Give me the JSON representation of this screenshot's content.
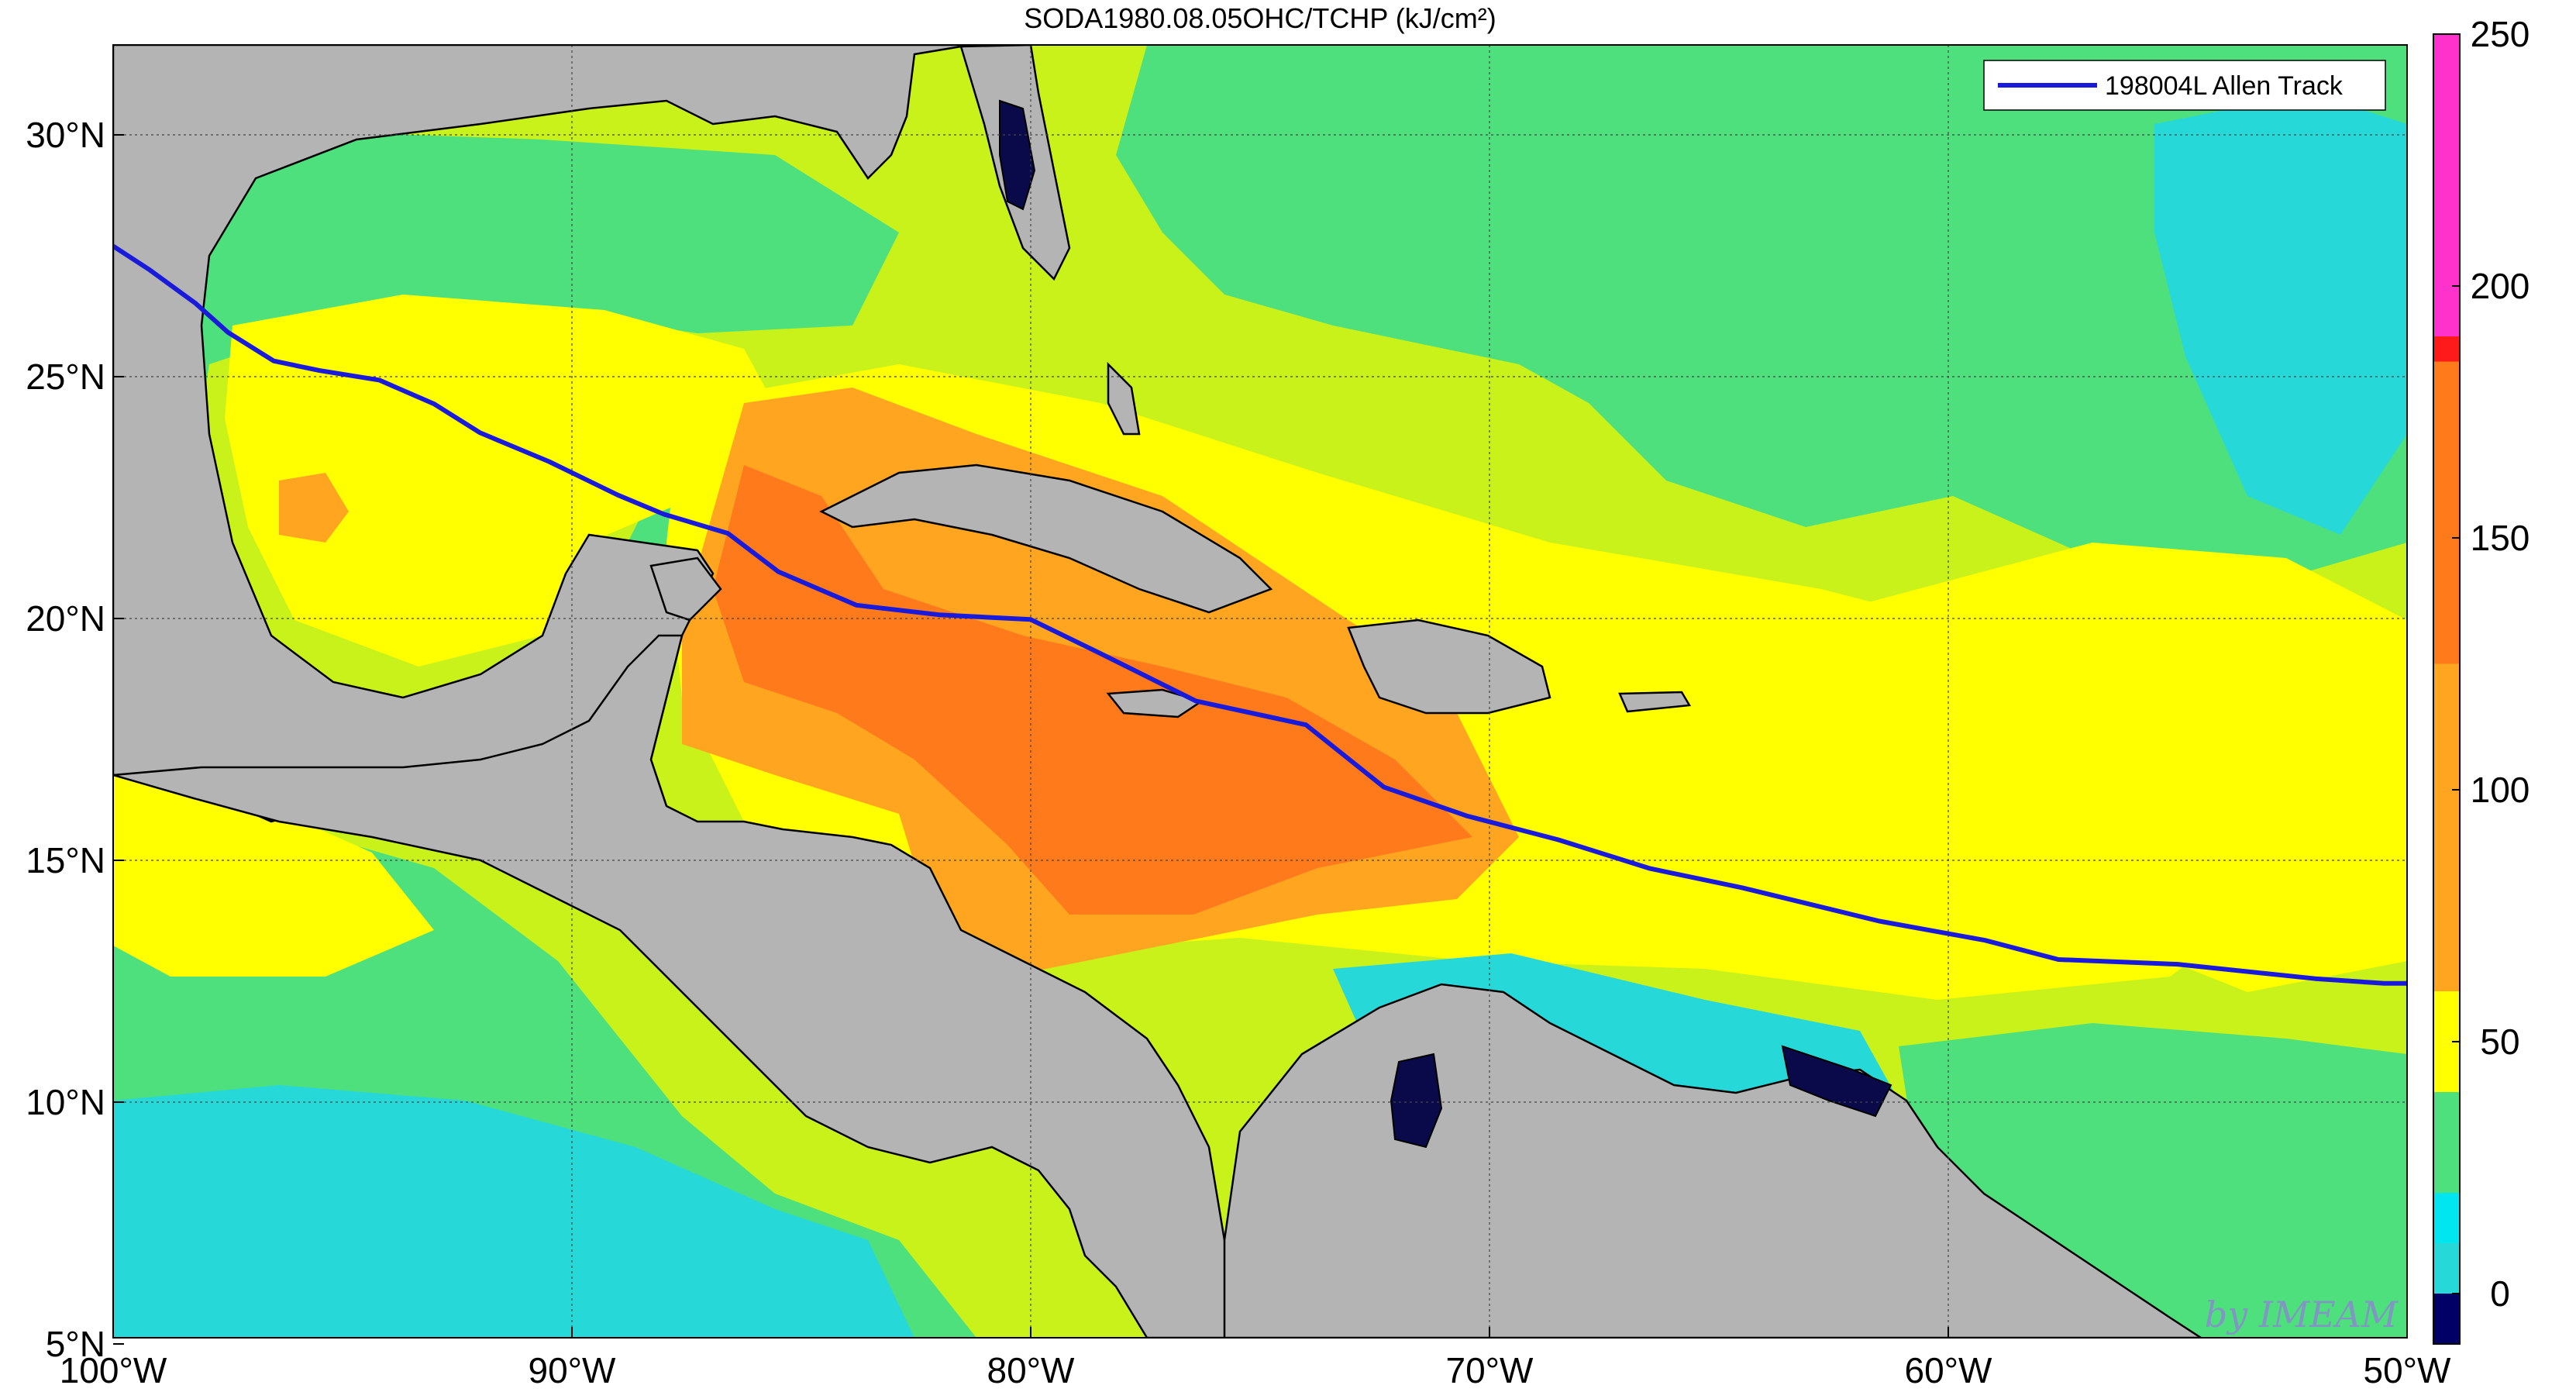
{
  "title": "SODA1980.08.05OHC/TCHP (kJ/cm²)",
  "credit": "by IMEAM",
  "legend": {
    "label": "198004L Allen Track",
    "color": "#1a1adb",
    "placement": "top-right"
  },
  "x_ticks": [
    "100°W",
    "90°W",
    "80°W",
    "70°W",
    "60°W",
    "50°W"
  ],
  "y_ticks": [
    "5°N",
    "10°N",
    "15°N",
    "20°N",
    "25°N",
    "30°N"
  ],
  "colorbar": {
    "ticks": [
      "0",
      "50",
      "100",
      "150",
      "200",
      "250"
    ],
    "range": [
      -10,
      250
    ],
    "levels": [
      {
        "from": -10,
        "to": 0,
        "color": "#000066"
      },
      {
        "from": 0,
        "to": 10,
        "color": "#27d8d8"
      },
      {
        "from": 10,
        "to": 20,
        "color": "#00e6f0"
      },
      {
        "from": 20,
        "to": 40,
        "color": "#4ee07c"
      },
      {
        "from": 40,
        "to": 60,
        "color": "#ffff00"
      },
      {
        "from": 60,
        "to": 125,
        "color": "#ffa51f"
      },
      {
        "from": 125,
        "to": 185,
        "color": "#ff7a1a"
      },
      {
        "from": 185,
        "to": 190,
        "color": "#ff1a1a"
      },
      {
        "from": 190,
        "to": 250,
        "color": "#ff33cc"
      }
    ]
  },
  "chart_data": {
    "type": "map",
    "lon_range": [
      -100,
      -50
    ],
    "lat_range": [
      5,
      32
    ],
    "grid": true,
    "track": {
      "name": "198004L Allen Track",
      "lon": [
        -100,
        -99.2,
        -98.2,
        -97.5,
        -96.5,
        -95.5,
        -94.2,
        -93,
        -92,
        -90.5,
        -89,
        -88,
        -86.6,
        -85.5,
        -83.8,
        -82,
        -80,
        -78.5,
        -76.4,
        -74,
        -72.3,
        -70.5,
        -68.5,
        -66.5,
        -64.5,
        -61.5,
        -59.2,
        -57.6,
        -55,
        -52,
        -50.5,
        -50
      ],
      "lat": [
        27.8,
        27.3,
        26.6,
        26.0,
        25.4,
        25.2,
        25.0,
        24.5,
        23.9,
        23.3,
        22.6,
        22.2,
        21.8,
        21.0,
        20.3,
        20.1,
        20.0,
        19.3,
        18.3,
        17.8,
        16.5,
        15.9,
        15.4,
        14.8,
        14.4,
        13.7,
        13.3,
        12.9,
        12.8,
        12.5,
        12.4,
        12.4
      ]
    }
  }
}
